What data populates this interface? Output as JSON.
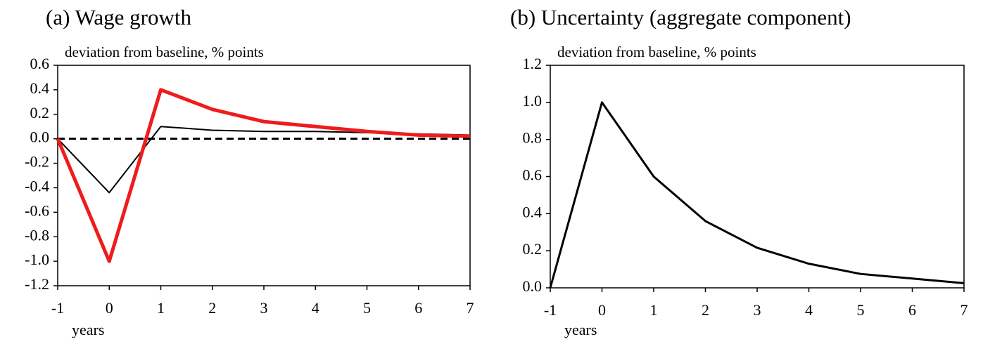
{
  "chart_data": [
    {
      "type": "line",
      "title": "(a) Wage growth",
      "ylabel": "deviation from baseline, % points",
      "xlabel": "years",
      "x": [
        -1,
        0,
        1,
        2,
        3,
        4,
        5,
        6,
        7
      ],
      "series": [
        {
          "color": "#000000",
          "values": [
            0,
            -0.44,
            0.1,
            0.07,
            0.06,
            0.06,
            0.05,
            0.04,
            0.03
          ]
        },
        {
          "color": "#ee1c1c",
          "values": [
            0,
            -1.0,
            0.4,
            0.24,
            0.14,
            0.1,
            0.06,
            0.03,
            0.02
          ]
        }
      ],
      "xlim": [
        -1,
        7
      ],
      "xticks": [
        -1,
        0,
        1,
        2,
        3,
        4,
        5,
        6,
        7
      ],
      "ylim": [
        -1.2,
        0.6
      ],
      "yticks": [
        -1.2,
        {
          "value": -1,
          "label": "-1.0"
        },
        -0.8,
        -0.6,
        -0.4,
        -0.2,
        {
          "value": 0,
          "label": "0.0"
        },
        0.2,
        0.4,
        0.6
      ],
      "zero_line": true,
      "grid": false
    },
    {
      "type": "line",
      "title": "(b) Uncertainty (aggregate component)",
      "ylabel": "deviation from baseline, % points",
      "xlabel": "years",
      "x": [
        -1,
        0,
        1,
        2,
        3,
        4,
        5,
        6,
        7
      ],
      "series": [
        {
          "color": "#000000",
          "values": [
            0,
            1.0,
            0.6,
            0.36,
            0.216,
            0.13,
            0.075,
            0.05,
            0.025
          ]
        }
      ],
      "xlim": [
        -1,
        7
      ],
      "xticks": [
        -1,
        0,
        1,
        2,
        3,
        4,
        5,
        6,
        7
      ],
      "ylim": [
        0,
        1.2
      ],
      "yticks": [
        {
          "value": 0,
          "label": "0.0"
        },
        0.2,
        0.4,
        0.6,
        0.8,
        {
          "value": 1,
          "label": "1.0"
        },
        1.2
      ],
      "zero_line": false,
      "grid": false
    }
  ]
}
